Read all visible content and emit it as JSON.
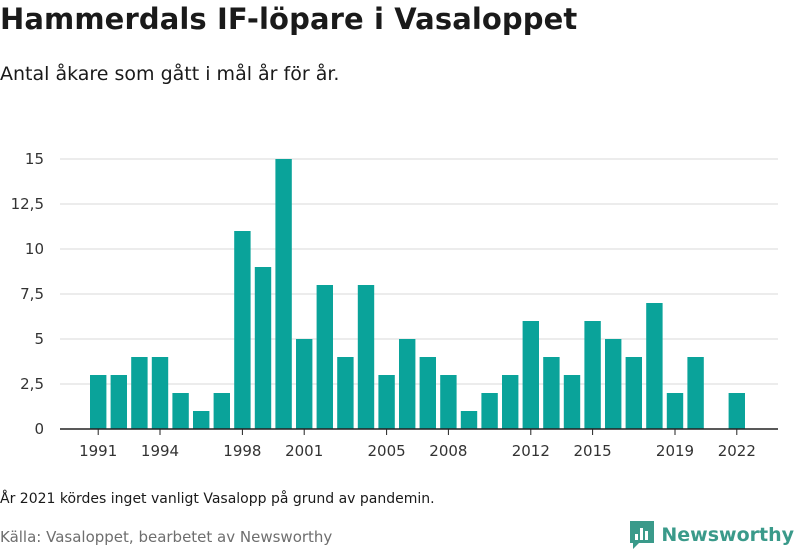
{
  "title": "Hammerdals IF-löpare i Vasaloppet",
  "subtitle": "Antal åkare som gått i mål år för år.",
  "footnote": "År 2021 kördes inget vanligt Vasalopp på grund av pandemin.",
  "source": "Källa: Vasaloppet, bearbetet av Newsworthy",
  "brand": {
    "name": "Newsworthy",
    "color": "#3a9a8a"
  },
  "chart_data": {
    "type": "bar",
    "bar_color": "#0aa39a",
    "x": [
      1991,
      1992,
      1993,
      1994,
      1995,
      1996,
      1997,
      1998,
      1999,
      2000,
      2001,
      2002,
      2003,
      2004,
      2005,
      2006,
      2007,
      2008,
      2009,
      2010,
      2011,
      2012,
      2013,
      2014,
      2015,
      2016,
      2017,
      2018,
      2019,
      2020,
      2021,
      2022
    ],
    "values": [
      3,
      3,
      4,
      4,
      2,
      1,
      2,
      11,
      9,
      15,
      5,
      8,
      4,
      8,
      3,
      5,
      4,
      3,
      1,
      2,
      3,
      6,
      4,
      3,
      6,
      5,
      4,
      7,
      2,
      4,
      0,
      2
    ],
    "x_tick_labels": [
      "1991",
      "1994",
      "1998",
      "2001",
      "2005",
      "2008",
      "2012",
      "2015",
      "2019",
      "2022"
    ],
    "y_ticks": [
      0,
      2.5,
      5,
      7.5,
      10,
      12.5,
      15
    ],
    "y_tick_labels": [
      "0",
      "2,5",
      "5",
      "7,5",
      "10",
      "12,5",
      "15"
    ],
    "ylim": [
      0,
      15
    ],
    "grid": true
  }
}
